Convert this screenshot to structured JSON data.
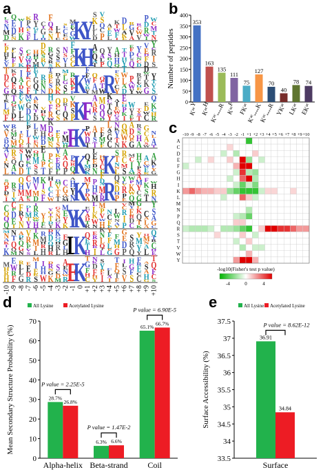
{
  "panels": {
    "a": {
      "label": "a"
    },
    "b": {
      "label": "b"
    },
    "c": {
      "label": "c"
    },
    "d": {
      "label": "d"
    },
    "e": {
      "label": "e"
    }
  },
  "chart_data": [
    {
      "id": "a",
      "type": "other",
      "positions": [
        "-10",
        "-9",
        "-8",
        "-7",
        "-6",
        "-5",
        "-4",
        "-3",
        "-2",
        "-1",
        "0",
        "+1",
        "+2",
        "+3",
        "+4",
        "+5",
        "+6",
        "+7",
        "+8",
        "+9",
        "+10"
      ],
      "motifs": [
        {
          "center": "K",
          "flank_pos": "+1",
          "flank": "Y"
        },
        {
          "center": "K",
          "flank_pos": "+1",
          "flank": "H"
        },
        {
          "center": "K",
          "flank_pos": "+4",
          "flank": "R"
        },
        {
          "center": "K",
          "flank_pos": "+1",
          "flank": "F"
        },
        {
          "center": "K",
          "flank_pos": "-1",
          "flank": "F"
        },
        {
          "center": "K",
          "flank_pos": "+4",
          "flank": "K"
        },
        {
          "center": "K",
          "flank_pos": "+4",
          "flank": "R"
        },
        {
          "center": "K",
          "flank_pos": "-1",
          "flank": "Y"
        },
        {
          "center": "K",
          "flank_pos": "-1",
          "flank": "L"
        },
        {
          "center": "K",
          "flank_pos": "-1",
          "flank": "E"
        }
      ],
      "colors": {
        "K": "#3f56c8",
        "Y": "#3f56c8",
        "H": "#3f56c8",
        "R": "#3f56c8",
        "F": "#8a2ac7",
        "L": "#000000",
        "E": "#e23030"
      }
    },
    {
      "id": "b",
      "type": "bar",
      "ylabel": "Number of peptides",
      "ylim": [
        0,
        400
      ],
      "yticks": [
        0,
        50,
        100,
        150,
        200,
        250,
        300,
        350,
        400
      ],
      "categories": [
        {
          "main": "K",
          "sup": "ac",
          "tail": "Y",
          "mid": ""
        },
        {
          "main": "K",
          "sup": "ac",
          "tail": "H",
          "mid": ""
        },
        {
          "main": "K",
          "sup": "ac",
          "tail": "R",
          "mid": "****"
        },
        {
          "main": "K",
          "sup": "ac",
          "tail": "F",
          "mid": ""
        },
        {
          "main": "FK",
          "sup": "ac",
          "tail": "",
          "mid": ""
        },
        {
          "main": "K",
          "sup": "ac",
          "tail": "K",
          "mid": "****"
        },
        {
          "main": "K",
          "sup": "ac",
          "tail": "R",
          "mid": "****"
        },
        {
          "main": "YK",
          "sup": "ac",
          "tail": "",
          "mid": ""
        },
        {
          "main": "LK",
          "sup": "ac",
          "tail": "",
          "mid": ""
        },
        {
          "main": "EK",
          "sup": "ac",
          "tail": "",
          "mid": ""
        }
      ],
      "values": [
        353,
        163,
        135,
        111,
        75,
        127,
        70,
        40,
        78,
        74
      ],
      "colors": [
        "#4472c4",
        "#c0504d",
        "#9bbb59",
        "#8064a2",
        "#4bacc6",
        "#f79646",
        "#2c4d75",
        "#772c2a",
        "#5f7530",
        "#4d3b62"
      ]
    },
    {
      "id": "c",
      "type": "heatmap",
      "xcategories": [
        "-10",
        "-9",
        "-8",
        "-7",
        "-6",
        "-5",
        "-4",
        "-3",
        "-2",
        "-1",
        "+1",
        "+2",
        "+3",
        "+4",
        "+5",
        "+6",
        "+7",
        "+8",
        "+9",
        "+10"
      ],
      "ycategories": [
        "A",
        "C",
        "D",
        "E",
        "F",
        "G",
        "H",
        "I",
        "K",
        "L",
        "M",
        "N",
        "P",
        "Q",
        "R",
        "S",
        "T",
        "V",
        "W",
        "Y"
      ],
      "cells": [
        {
          "r": "A",
          "c": "+1",
          "v": -4
        },
        {
          "r": "C",
          "c": "-3",
          "v": 0.8
        },
        {
          "r": "D",
          "c": "-4",
          "v": -1
        },
        {
          "r": "D",
          "c": "-2",
          "v": -1.5
        },
        {
          "r": "D",
          "c": "+2",
          "v": 1
        },
        {
          "r": "E",
          "c": "-1",
          "v": 5
        },
        {
          "r": "E",
          "c": "-3",
          "v": 1
        },
        {
          "r": "E",
          "c": "+1",
          "v": -2
        },
        {
          "r": "E",
          "c": "+3",
          "v": -1
        },
        {
          "r": "E",
          "c": "-8",
          "v": -1
        },
        {
          "r": "E",
          "c": "-6",
          "v": 0.8
        },
        {
          "r": "F",
          "c": "-1",
          "v": 5
        },
        {
          "r": "F",
          "c": "+1",
          "v": 5
        },
        {
          "r": "F",
          "c": "-2",
          "v": 1.5
        },
        {
          "r": "F",
          "c": "-10",
          "v": -1
        },
        {
          "r": "G",
          "c": "-1",
          "v": 4
        },
        {
          "r": "G",
          "c": "+1",
          "v": -1.5
        },
        {
          "r": "G",
          "c": "+2",
          "v": -2
        },
        {
          "r": "G",
          "c": "-2",
          "v": -1
        },
        {
          "r": "H",
          "c": "+1",
          "v": 5
        },
        {
          "r": "H",
          "c": "-1",
          "v": 3
        },
        {
          "r": "H",
          "c": "+2",
          "v": -1.5
        },
        {
          "r": "H",
          "c": "-3",
          "v": -1
        },
        {
          "r": "I",
          "c": "-1",
          "v": -3
        },
        {
          "r": "I",
          "c": "+2",
          "v": -2.5
        },
        {
          "r": "I",
          "c": "+1",
          "v": -1
        },
        {
          "r": "I",
          "c": "-2",
          "v": -1
        },
        {
          "r": "K",
          "c": "-10",
          "v": 2
        },
        {
          "r": "K",
          "c": "-9",
          "v": 3
        },
        {
          "r": "K",
          "c": "-8",
          "v": 2
        },
        {
          "r": "K",
          "c": "-7",
          "v": 1.5
        },
        {
          "r": "K",
          "c": "-6",
          "v": 1.5
        },
        {
          "r": "K",
          "c": "-5",
          "v": 1
        },
        {
          "r": "K",
          "c": "-4",
          "v": 1
        },
        {
          "r": "K",
          "c": "-3",
          "v": -2
        },
        {
          "r": "K",
          "c": "-2",
          "v": -3
        },
        {
          "r": "K",
          "c": "-1",
          "v": -4
        },
        {
          "r": "K",
          "c": "+1",
          "v": -4
        },
        {
          "r": "K",
          "c": "+2",
          "v": -4
        },
        {
          "r": "K",
          "c": "+3",
          "v": -1
        },
        {
          "r": "K",
          "c": "+4",
          "v": 0.8
        },
        {
          "r": "K",
          "c": "+5",
          "v": 0.8
        },
        {
          "r": "K",
          "c": "+8",
          "v": 0.8
        },
        {
          "r": "L",
          "c": "-1",
          "v": 3
        },
        {
          "r": "L",
          "c": "+1",
          "v": 1
        },
        {
          "r": "L",
          "c": "-4",
          "v": -1
        },
        {
          "r": "L",
          "c": "+2",
          "v": -1
        },
        {
          "r": "N",
          "c": "+1",
          "v": -1.5
        },
        {
          "r": "P",
          "c": "+1",
          "v": -3
        },
        {
          "r": "P",
          "c": "-1",
          "v": -1.5
        },
        {
          "r": "P",
          "c": "-2",
          "v": -1
        },
        {
          "r": "Q",
          "c": "-2",
          "v": 1
        },
        {
          "r": "Q",
          "c": "-1",
          "v": 1
        },
        {
          "r": "R",
          "c": "-10",
          "v": -1
        },
        {
          "r": "R",
          "c": "-9",
          "v": -1.5
        },
        {
          "r": "R",
          "c": "-8",
          "v": -1.5
        },
        {
          "r": "R",
          "c": "-7",
          "v": -1.5
        },
        {
          "r": "R",
          "c": "-6",
          "v": -1
        },
        {
          "r": "R",
          "c": "-4",
          "v": -1.5
        },
        {
          "r": "R",
          "c": "-3",
          "v": -1.5
        },
        {
          "r": "R",
          "c": "-2",
          "v": -2
        },
        {
          "r": "R",
          "c": "-1",
          "v": -3
        },
        {
          "r": "R",
          "c": "+1",
          "v": -4
        },
        {
          "r": "R",
          "c": "+3",
          "v": 1
        },
        {
          "r": "R",
          "c": "+4",
          "v": 5
        },
        {
          "r": "R",
          "c": "+5",
          "v": 5
        },
        {
          "r": "R",
          "c": "+6",
          "v": 4
        },
        {
          "r": "R",
          "c": "+7",
          "v": 4
        },
        {
          "r": "R",
          "c": "+8",
          "v": 3
        },
        {
          "r": "R",
          "c": "+9",
          "v": 2
        },
        {
          "r": "R",
          "c": "+10",
          "v": 2
        },
        {
          "r": "S",
          "c": "-1",
          "v": 1
        },
        {
          "r": "S",
          "c": "+2",
          "v": -1
        },
        {
          "r": "S",
          "c": "-5",
          "v": 0.8
        },
        {
          "r": "T",
          "c": "+1",
          "v": 1
        },
        {
          "r": "T",
          "c": "-2",
          "v": -1
        },
        {
          "r": "V",
          "c": "-1",
          "v": -1.5
        },
        {
          "r": "V",
          "c": "+2",
          "v": -1
        },
        {
          "r": "V",
          "c": "+3",
          "v": -1
        },
        {
          "r": "W",
          "c": "+1",
          "v": 1.5
        },
        {
          "r": "Y",
          "c": "-1",
          "v": 5
        },
        {
          "r": "Y",
          "c": "+1",
          "v": 5
        },
        {
          "r": "Y",
          "c": "-2",
          "v": 2
        },
        {
          "r": "Y",
          "c": "+2",
          "v": 1.5
        }
      ],
      "colorbar": {
        "label": "-log10(Fisher's test p value)",
        "ticks": [
          "-4",
          "0",
          "4"
        ],
        "low_color": "#00b400",
        "high_color": "#e00000"
      }
    },
    {
      "id": "d",
      "type": "bar",
      "ylabel": "Mean Secondary Structure Probability (%)",
      "ylim": [
        0,
        70
      ],
      "yticks": [
        0,
        10,
        20,
        30,
        40,
        50,
        60,
        70
      ],
      "categories": [
        "Alpha-helix",
        "Beta-strand",
        "Coil"
      ],
      "series": [
        {
          "name": "All Lysine",
          "values": [
            28.7,
            6.3,
            65.1
          ],
          "labels": [
            "28.7%",
            "6.3%",
            "65.1%"
          ],
          "color": "#22b24c"
        },
        {
          "name": "Acetylated Lysine",
          "values": [
            26.8,
            6.6,
            66.7
          ],
          "labels": [
            "26.8%",
            "6.6%",
            "66.7%"
          ],
          "color": "#ed1c24"
        }
      ],
      "annotations": [
        {
          "category": "Alpha-helix",
          "prefix": "P value",
          "value": " = 2.25E-5"
        },
        {
          "category": "Beta-strand",
          "prefix": "P value",
          "value": " = 1.47E-2"
        },
        {
          "category": "Coil",
          "prefix": "P value",
          "value": " = 6.90E-5"
        }
      ]
    },
    {
      "id": "e",
      "type": "bar",
      "ylabel": "Surface Accessibility (%)",
      "ylim": [
        33.5,
        37.5
      ],
      "yticks": [
        "33.5",
        "34",
        "34.5",
        "35",
        "35.5",
        "36",
        "36.5",
        "37",
        "37.5"
      ],
      "categories": [
        "Surface"
      ],
      "series": [
        {
          "name": "All Lysine",
          "values": [
            36.91
          ],
          "labels": [
            "36.91"
          ],
          "color": "#22b24c"
        },
        {
          "name": "Acetylated Lysine",
          "values": [
            34.84
          ],
          "labels": [
            "34.84"
          ],
          "color": "#ed1c24"
        }
      ],
      "annotations": [
        {
          "category": "Surface",
          "prefix": "P value",
          "value": " = 8.62E-12"
        }
      ]
    }
  ]
}
